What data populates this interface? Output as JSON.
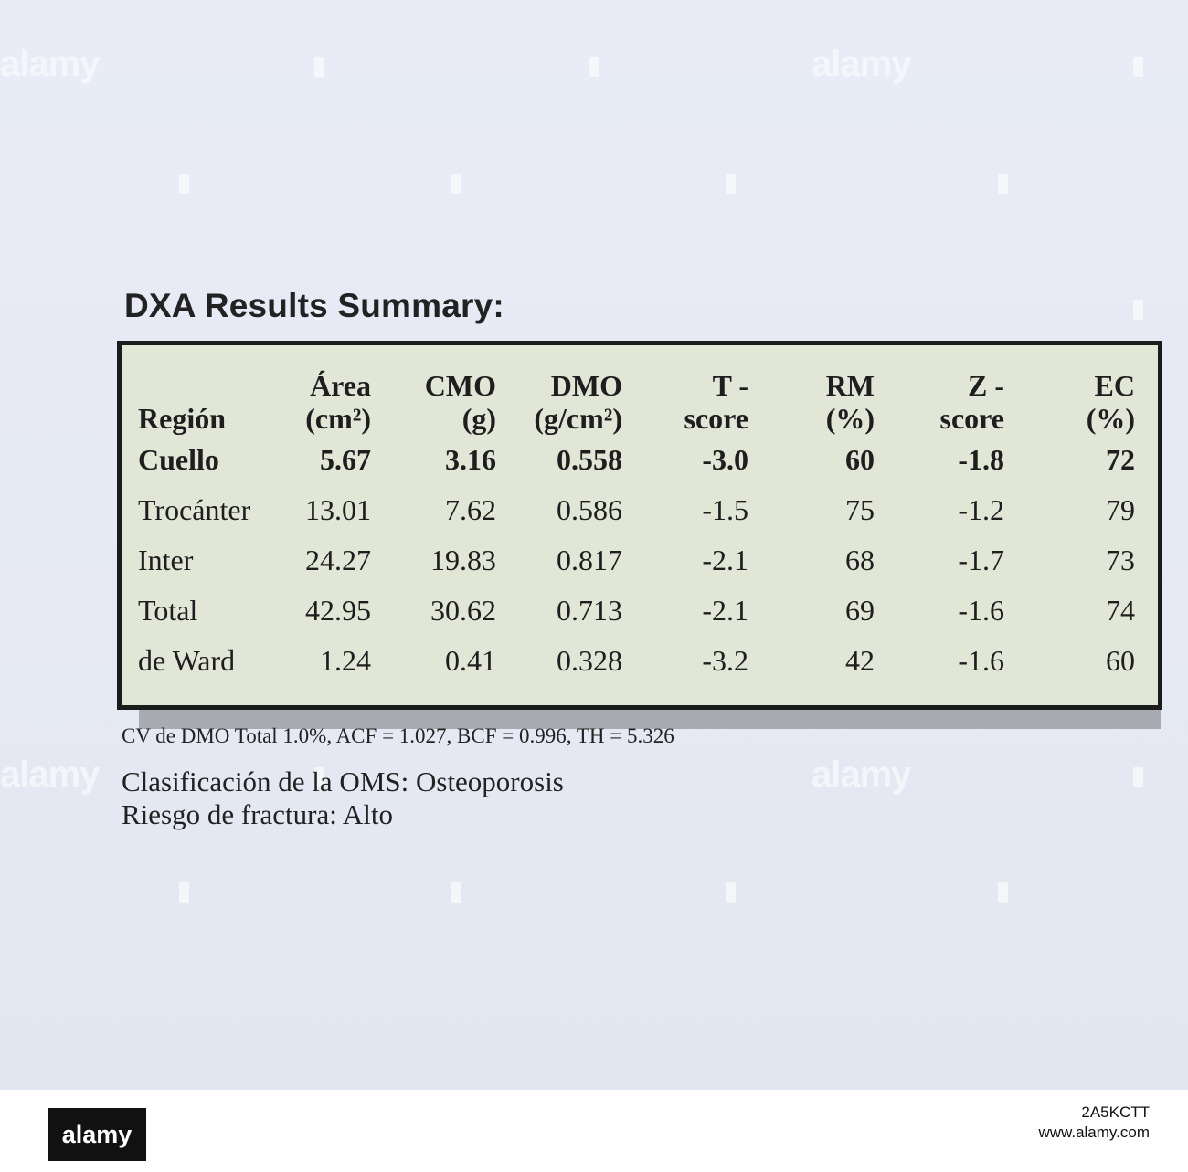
{
  "document": {
    "title": "DXA Results Summary:",
    "table": {
      "headers": [
        [
          "Región",
          ""
        ],
        [
          "Área",
          "(cm²)"
        ],
        [
          "CMO",
          "(g)"
        ],
        [
          "DMO",
          "(g/cm²)"
        ],
        [
          "T -",
          "score"
        ],
        [
          "RM",
          "(%)"
        ],
        [
          "Z -",
          "score"
        ],
        [
          "EC",
          "(%)"
        ]
      ],
      "rows": [
        [
          "Cuello",
          "5.67",
          "3.16",
          "0.558",
          "-3.0",
          "60",
          "-1.8",
          "72"
        ],
        [
          "Trocánter",
          "13.01",
          "7.62",
          "0.586",
          "-1.5",
          "75",
          "-1.2",
          "79"
        ],
        [
          "Inter",
          "24.27",
          "19.83",
          "0.817",
          "-2.1",
          "68",
          "-1.7",
          "73"
        ],
        [
          "Total",
          "42.95",
          "30.62",
          "0.713",
          "-2.1",
          "69",
          "-1.6",
          "74"
        ],
        [
          "de Ward",
          "1.24",
          "0.41",
          "0.328",
          "-3.2",
          "42",
          "-1.6",
          "60"
        ]
      ]
    },
    "footnote": "CV de DMO Total 1.0%, ACF = 1.027, BCF = 0.996, TH = 5.326",
    "classification": "Clasificación de la OMS: Osteoporosis",
    "fracture_risk": "Riesgo de fractura: Alto"
  },
  "watermark": {
    "text": "alamy",
    "image_id": "2A5KCTT",
    "url": "www.alamy.com"
  }
}
